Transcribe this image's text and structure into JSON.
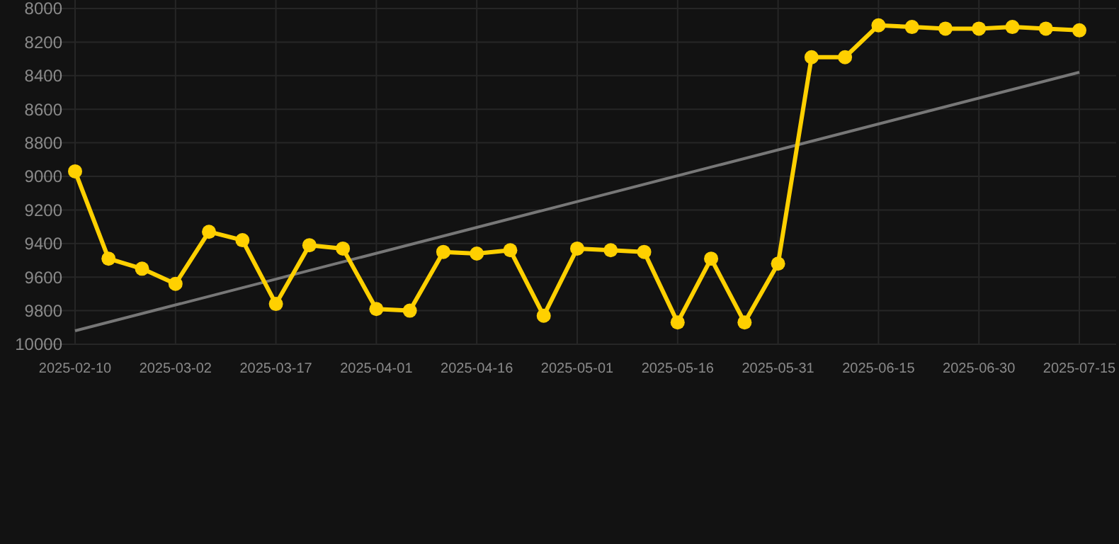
{
  "chart_data": {
    "type": "line",
    "categories": [
      "2025-02-10",
      null,
      null,
      "2025-03-02",
      null,
      null,
      "2025-03-17",
      null,
      null,
      "2025-04-01",
      null,
      null,
      "2025-04-16",
      null,
      null,
      "2025-05-01",
      null,
      null,
      "2025-05-16",
      null,
      null,
      "2025-05-31",
      null,
      null,
      "2025-06-15",
      null,
      null,
      "2025-06-30",
      null,
      null,
      "2025-07-15"
    ],
    "series": [
      {
        "color": "#ffd000",
        "marker": "circle",
        "values": [
          8970,
          9490,
          9550,
          9640,
          9330,
          9380,
          9760,
          9410,
          9430,
          9790,
          9800,
          9450,
          9460,
          9440,
          9830,
          9430,
          9440,
          9450,
          9870,
          9490,
          9870,
          9520,
          8290,
          8290,
          8100,
          8110,
          8120,
          8120,
          8110,
          8120,
          8130
        ]
      },
      {
        "type": "line",
        "color": "#777777",
        "marker": "none",
        "values": [
          9920,
          null,
          null,
          null,
          null,
          null,
          null,
          null,
          null,
          null,
          null,
          null,
          null,
          null,
          null,
          null,
          null,
          null,
          null,
          null,
          null,
          null,
          null,
          null,
          null,
          null,
          null,
          null,
          null,
          null,
          8380
        ]
      }
    ],
    "ylim": [
      10000,
      8000
    ],
    "yticks": [
      8000,
      8200,
      8400,
      8600,
      8800,
      9000,
      9200,
      9400,
      9600,
      9800,
      10000
    ],
    "grid": true
  }
}
